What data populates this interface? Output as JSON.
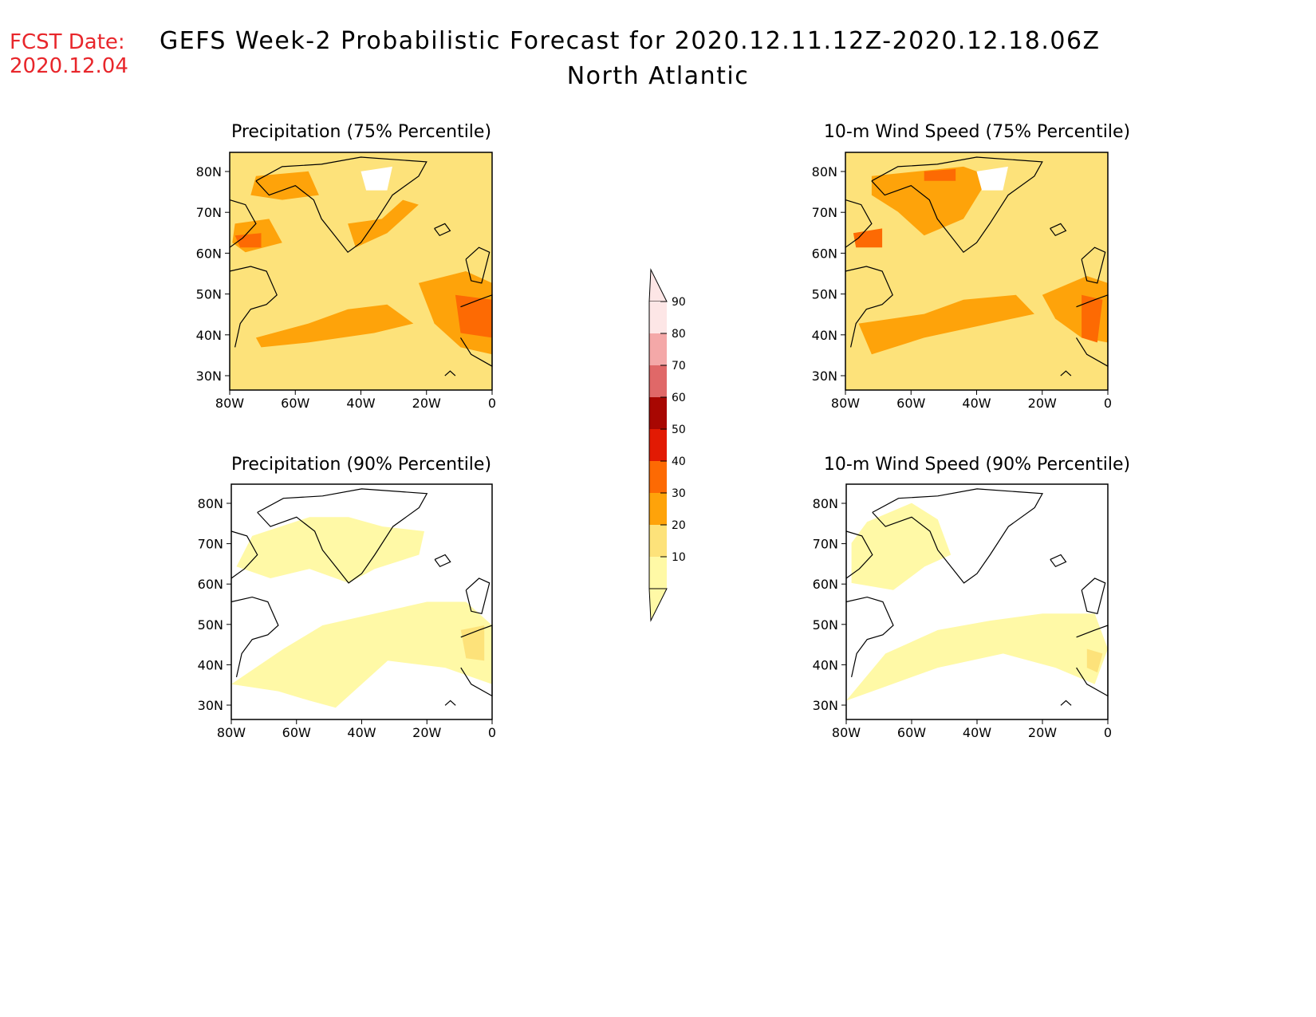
{
  "fcst_date": {
    "label": "FCST Date:",
    "value": "2020.12.04"
  },
  "title": "GEFS Week-2 Probabilistic Forecast for 2020.12.11.12Z-2020.12.18.06Z",
  "subtitle": "North Atlantic",
  "colors": {
    "c10": "#fff9a6",
    "c20": "#fde27a",
    "c30": "#fea30a",
    "c40": "#fd6a03",
    "c50": "#e21a03",
    "c60": "#a80702",
    "c70": "#e06868",
    "c80": "#f4a8a8",
    "c90": "#fde6e6"
  },
  "colorbar": {
    "labels": [
      "10",
      "20",
      "30",
      "40",
      "50",
      "60",
      "70",
      "80",
      "90"
    ]
  },
  "lat_ticks": [
    "80N",
    "70N",
    "60N",
    "50N",
    "40N",
    "30N"
  ],
  "lon_ticks": [
    "80W",
    "60W",
    "40W",
    "20W",
    "0"
  ],
  "panels": [
    {
      "id": "precip75",
      "title": "Precipitation (75% Percentile)"
    },
    {
      "id": "wind75",
      "title": "10-m Wind Speed (75% Percentile)"
    },
    {
      "id": "precip90",
      "title": "Precipitation (90% Percentile)"
    },
    {
      "id": "wind90",
      "title": "10-m Wind Speed (90% Percentile)"
    }
  ]
}
